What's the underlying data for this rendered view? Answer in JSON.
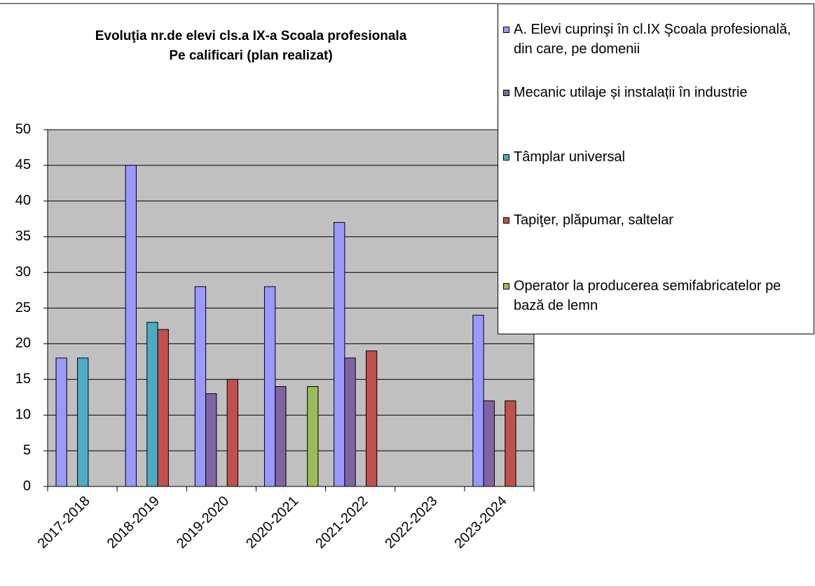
{
  "chart_data": {
    "type": "bar",
    "title": [
      "Evoluţia nr.de elevi cls.a IX-a Scoala profesionala",
      "Pe calificari  (plan realizat)"
    ],
    "categories": [
      "2017-2018",
      "2018-2019",
      "2019-2020",
      "2020-2021",
      "2021-2022",
      "2022-2023",
      "2023-2024"
    ],
    "series": [
      {
        "name": "A. Elevi cuprinşi în cl.IX Şcoala profesională, din care, pe domenii",
        "color": "#9999ff",
        "values": [
          18,
          45,
          28,
          28,
          37,
          null,
          24
        ]
      },
      {
        "name": "Mecanic utilaje  și instalații în industrie",
        "color": "#8064a2",
        "values": [
          null,
          null,
          13,
          14,
          18,
          null,
          12
        ]
      },
      {
        "name": "Tâmplar universal",
        "color": "#4bacc6",
        "values": [
          18,
          23,
          null,
          null,
          null,
          null,
          null
        ]
      },
      {
        "name": "Tapiţer, plăpumar, saltelar",
        "color": "#c0504d",
        "values": [
          null,
          22,
          15,
          null,
          19,
          null,
          12
        ]
      },
      {
        "name": "Operator la producerea semifabricatelor pe bază de lemn",
        "color": "#9bbb59",
        "values": [
          null,
          null,
          null,
          14,
          null,
          null,
          null
        ]
      }
    ],
    "ylim": [
      0,
      50
    ],
    "yticks": [
      0,
      5,
      10,
      15,
      20,
      25,
      30,
      35,
      40,
      45,
      50
    ],
    "grid": true
  }
}
